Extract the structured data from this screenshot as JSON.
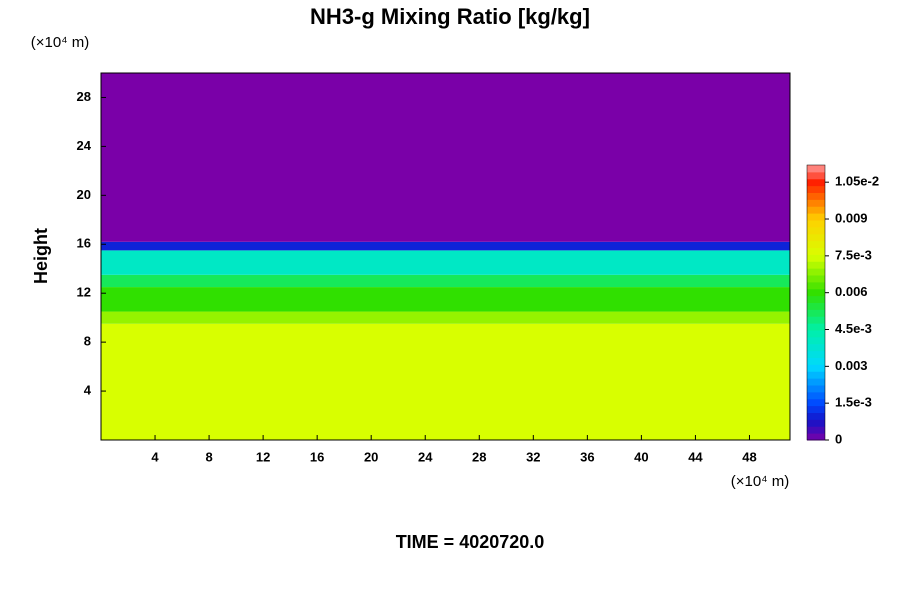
{
  "chart_data": {
    "type": "contour",
    "title": "NH3-g Mixing Ratio [kg/kg]",
    "x_unit": "(×10⁴ m)",
    "y_unit": "(×10⁴ m)",
    "ylabel": "Height",
    "footer": "TIME = 4020720.0",
    "xlim": [
      0,
      51
    ],
    "ylim": [
      0,
      30
    ],
    "xticks": [
      4,
      8,
      12,
      16,
      20,
      24,
      28,
      32,
      36,
      40,
      44,
      48
    ],
    "yticks": [
      4,
      8,
      12,
      16,
      20,
      24,
      28
    ],
    "clim": [
      0,
      0.0112
    ],
    "cticks": [
      0,
      {
        "value": 0.0015,
        "label": "1.5e-3"
      },
      0.003,
      {
        "value": 0.0045,
        "label": "4.5e-3"
      },
      0.006,
      {
        "value": 0.0075,
        "label": "7.5e-3"
      },
      0.009,
      {
        "value": 0.0105,
        "label": "1.05e-2"
      }
    ],
    "colorscale": [
      [
        0,
        "#7a00a8"
      ],
      [
        0.0008,
        "#1414c8"
      ],
      [
        0.0015,
        "#0048ff"
      ],
      [
        0.003,
        "#00d8ff"
      ],
      [
        0.0045,
        "#00f0a8"
      ],
      [
        0.006,
        "#30e000"
      ],
      [
        0.0075,
        "#d8ff00"
      ],
      [
        0.009,
        "#ffd000"
      ],
      [
        0.0105,
        "#ff2000"
      ],
      [
        0.0112,
        "#ff9a9a"
      ]
    ],
    "layers": [
      {
        "y0": 0,
        "y1": 9.5,
        "value": 0.0075
      },
      {
        "y0": 9.5,
        "y1": 10.5,
        "value": 0.0069
      },
      {
        "y0": 10.5,
        "y1": 12.5,
        "value": 0.006
      },
      {
        "y0": 12.5,
        "y1": 13.5,
        "value": 0.0052
      },
      {
        "y0": 13.5,
        "y1": 15.5,
        "value": 0.004
      },
      {
        "y0": 15.5,
        "y1": 16.2,
        "value": 0.001
      },
      {
        "y0": 16.2,
        "y1": 30,
        "value": 0
      }
    ]
  }
}
